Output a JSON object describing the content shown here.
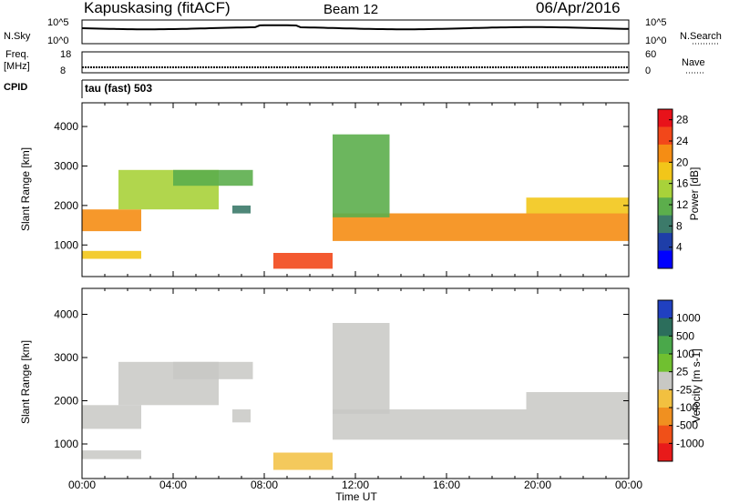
{
  "header": {
    "station": "Kapuskasing (fitACF)",
    "beam": "Beam 12",
    "date": "06/Apr/2016"
  },
  "noise_panel": {
    "left_label": "N.Sky",
    "right_label": "N.Search",
    "left_ticks": [
      "10^5",
      "10^0"
    ],
    "right_ticks": [
      "10^5",
      "10^0"
    ]
  },
  "freq_panel": {
    "left_label_line1": "Freq.",
    "left_label_line2": "[MHz]",
    "right_label": "Nave",
    "left_ticks": [
      "18",
      "8"
    ],
    "right_ticks": [
      "60",
      "0"
    ]
  },
  "cpid_panel": {
    "label": "CPID",
    "text": "tau (fast) 503"
  },
  "colors": {
    "power_scale": [
      "#0000ff",
      "#1e3ea8",
      "#3c7a6a",
      "#5cae4c",
      "#a8d23a",
      "#f2c619",
      "#f58d14",
      "#f2471a",
      "#e8121a"
    ],
    "velocity_scale": [
      "#2040c0",
      "#2c6e5c",
      "#4aa84a",
      "#70c030",
      "#c8c8c4",
      "#f2c040",
      "#f09020",
      "#f05018",
      "#e81a1a"
    ]
  },
  "chart_data": [
    {
      "type": "heatmap",
      "panel": "power",
      "ylabel": "Slant Range [km]",
      "x_ticks": [
        "00:00",
        "04:00",
        "08:00",
        "12:00",
        "16:00",
        "20:00",
        "00:00"
      ],
      "y_ticks": [
        "1000",
        "2000",
        "3000",
        "4000"
      ],
      "ylim": [
        200,
        4600
      ],
      "colorbar_label": "Power [dB]",
      "colorbar_ticks": [
        "4",
        "8",
        "12",
        "16",
        "20",
        "24",
        "28"
      ],
      "colorbar_range": [
        0,
        30
      ],
      "grid": false,
      "features": [
        {
          "t": [
            0.0,
            2.6
          ],
          "range": [
            1350,
            1900
          ],
          "value": 22
        },
        {
          "t": [
            1.6,
            6.0
          ],
          "range": [
            1900,
            2900
          ],
          "value": 14
        },
        {
          "t": [
            4.0,
            7.5
          ],
          "range": [
            2500,
            2900
          ],
          "value": 10
        },
        {
          "t": [
            6.6,
            7.4
          ],
          "range": [
            1800,
            2000
          ],
          "value": 8
        },
        {
          "t": [
            8.4,
            11.0
          ],
          "range": [
            400,
            800
          ],
          "value": 26
        },
        {
          "t": [
            11.0,
            24.0
          ],
          "range": [
            1100,
            1800
          ],
          "value": 24
        },
        {
          "t": [
            11.0,
            13.5
          ],
          "range": [
            1700,
            3800
          ],
          "value": 12
        },
        {
          "t": [
            19.5,
            24.0
          ],
          "range": [
            1800,
            2200
          ],
          "value": 18
        },
        {
          "t": [
            0.0,
            2.6
          ],
          "range": [
            650,
            850
          ],
          "value": 20
        }
      ]
    },
    {
      "type": "heatmap",
      "panel": "velocity",
      "ylabel": "Slant Range [km]",
      "xlabel": "Time UT",
      "x_ticks": [
        "00:00",
        "04:00",
        "08:00",
        "12:00",
        "16:00",
        "20:00",
        "00:00"
      ],
      "y_ticks": [
        "1000",
        "2000",
        "3000",
        "4000"
      ],
      "ylim": [
        200,
        4600
      ],
      "colorbar_label": "Velocity [m s-1]",
      "colorbar_ticks": [
        "1000",
        "500",
        "100",
        "25",
        "-25",
        "-100",
        "-500",
        "-1000"
      ],
      "colorbar_range": [
        -1500,
        1500
      ],
      "grid": false,
      "features": [
        {
          "t": [
            0.0,
            2.6
          ],
          "range": [
            1350,
            1900
          ],
          "value": 0
        },
        {
          "t": [
            1.6,
            6.0
          ],
          "range": [
            1900,
            2900
          ],
          "value": 0
        },
        {
          "t": [
            4.0,
            7.5
          ],
          "range": [
            2500,
            2900
          ],
          "value": 0
        },
        {
          "t": [
            6.6,
            7.4
          ],
          "range": [
            1500,
            1800
          ],
          "value": 150
        },
        {
          "t": [
            8.4,
            11.0
          ],
          "range": [
            400,
            800
          ],
          "value": -400
        },
        {
          "t": [
            11.0,
            24.0
          ],
          "range": [
            1100,
            1800
          ],
          "value": 0
        },
        {
          "t": [
            11.0,
            13.5
          ],
          "range": [
            1700,
            3800
          ],
          "value": 0
        },
        {
          "t": [
            19.5,
            24.0
          ],
          "range": [
            1800,
            2200
          ],
          "value": -150
        },
        {
          "t": [
            0.0,
            2.6
          ],
          "range": [
            650,
            850
          ],
          "value": 80
        }
      ]
    }
  ]
}
